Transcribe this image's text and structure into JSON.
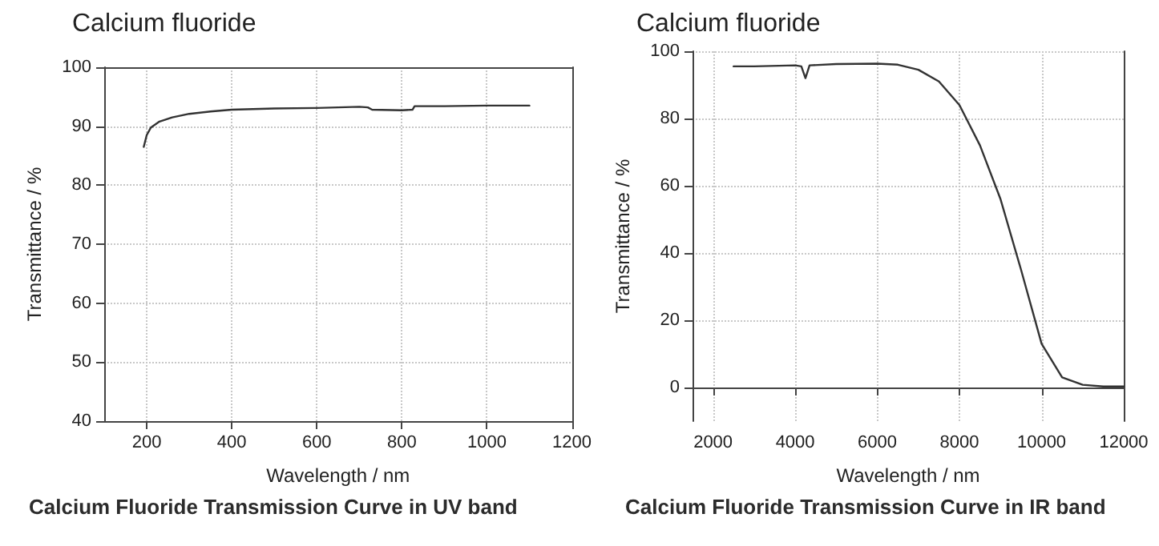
{
  "chart_data": [
    {
      "type": "line",
      "title": "Calcium fluoride",
      "xlabel": "Wavelength / nm",
      "ylabel": "Transmittance / %",
      "annotations": [
        "Calcium Fluoride Transmission Curve in UV band"
      ],
      "xlim": [
        100,
        1200
      ],
      "xticks": [
        200,
        400,
        600,
        800,
        1000,
        1200
      ],
      "ylim": [
        40,
        100
      ],
      "yticks": [
        40,
        50,
        60,
        70,
        80,
        90,
        100
      ],
      "grid": true,
      "marker": "none",
      "line_style": "solid",
      "series": [
        {
          "color": "#333333",
          "x": [
            193,
            200,
            210,
            230,
            260,
            300,
            350,
            400,
            500,
            600,
            700,
            720,
            730,
            800,
            825,
            830,
            900,
            1000,
            1100
          ],
          "values": [
            86.5,
            88.5,
            89.8,
            90.8,
            91.5,
            92.1,
            92.5,
            92.8,
            93.0,
            93.1,
            93.3,
            93.2,
            92.8,
            92.7,
            92.8,
            93.4,
            93.4,
            93.5,
            93.5
          ]
        }
      ]
    },
    {
      "type": "line",
      "title": "Calcium fluoride",
      "xlabel": "Wavelength / nm",
      "ylabel": "Transmittance / %",
      "annotations": [
        "Calcium Fluoride Transmission Curve in IR band"
      ],
      "xlim": [
        1500,
        12000
      ],
      "xticks": [
        2000,
        4000,
        6000,
        8000,
        10000,
        12000
      ],
      "ylim": [
        -10,
        100
      ],
      "yticks": [
        0,
        20,
        40,
        60,
        80,
        100
      ],
      "grid": true,
      "marker": "none",
      "line_style": "solid",
      "series": [
        {
          "color": "#333333",
          "x": [
            2500,
            3000,
            4000,
            4150,
            4250,
            4350,
            5000,
            6000,
            6500,
            7000,
            7500,
            8000,
            8500,
            9000,
            9500,
            10000,
            10500,
            11000,
            11500,
            12000
          ],
          "values": [
            95.5,
            95.5,
            95.8,
            95.5,
            92,
            95.8,
            96.2,
            96.3,
            96,
            94.5,
            91,
            84,
            72,
            56,
            35,
            13,
            3,
            0.8,
            0.3,
            0.3
          ]
        }
      ]
    }
  ]
}
